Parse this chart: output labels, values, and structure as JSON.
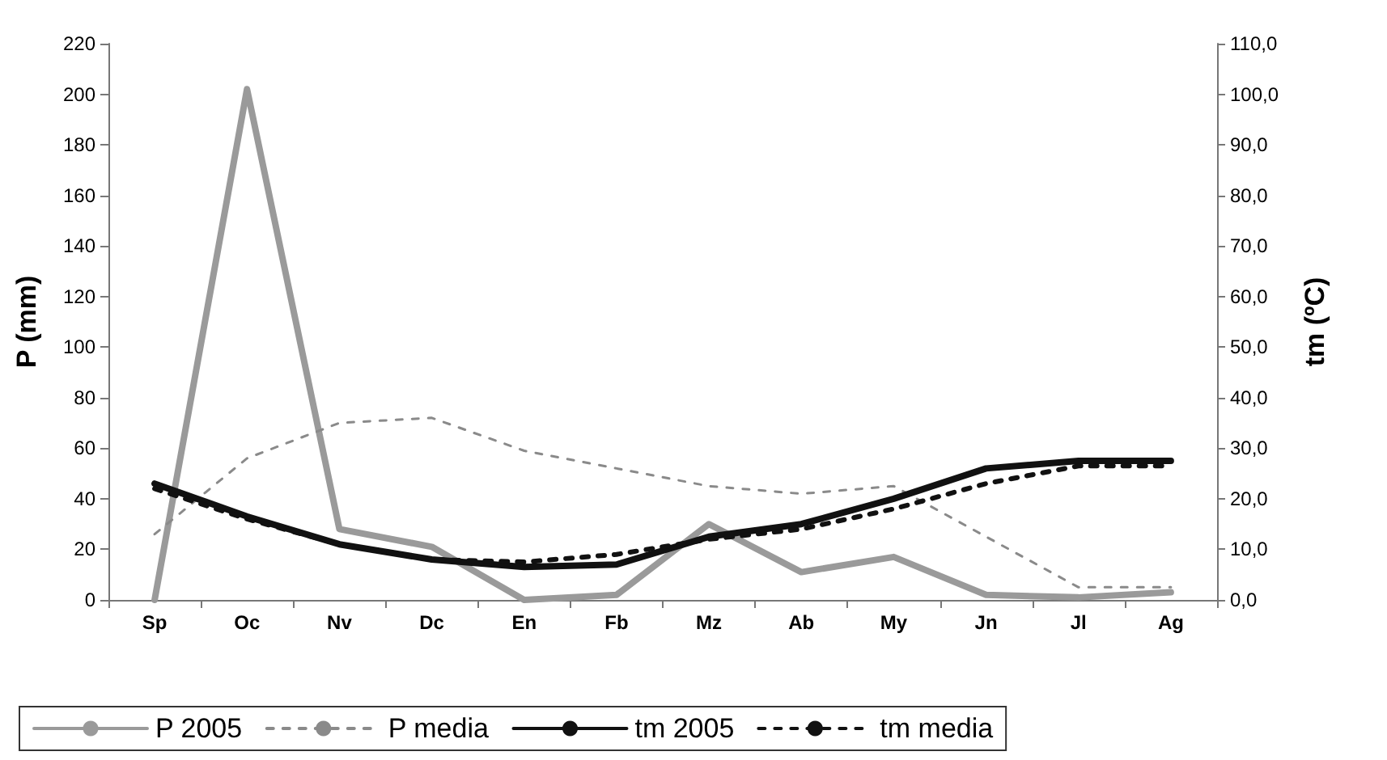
{
  "chart_data": {
    "type": "line",
    "ylabel": "P (mm)",
    "y2label": "tm (ºC)",
    "categories": [
      "Sp",
      "Oc",
      "Nv",
      "Dc",
      "En",
      "Fb",
      "Mz",
      "Ab",
      "My",
      "Jn",
      "Jl",
      "Ag"
    ],
    "series": [
      {
        "name": "P 2005",
        "color": "#9a9a9a",
        "line_style": "solid",
        "values": [
          0,
          202,
          28,
          21,
          0,
          2,
          30,
          11,
          17,
          2,
          1,
          3
        ]
      },
      {
        "name": "P media",
        "color": "#8a8a8a",
        "line_style": "dashed",
        "values": [
          26,
          56,
          70,
          72,
          59,
          52,
          45,
          42,
          45,
          25,
          5,
          5
        ]
      },
      {
        "name": "tm 2005",
        "color": "#111111",
        "line_style": "solid",
        "axis": "y2",
        "values": [
          23,
          16.5,
          11,
          8,
          6.5,
          7,
          12.5,
          15,
          20,
          26,
          27.5,
          27.5
        ]
      },
      {
        "name": "tm media",
        "color": "#111111",
        "line_style": "dashed",
        "axis": "y2",
        "values": [
          22,
          16,
          11,
          8,
          7.5,
          9,
          12,
          14,
          18,
          23,
          26.5,
          26.5
        ]
      }
    ],
    "ylim": [
      0,
      220
    ],
    "yticks": [
      0,
      20,
      40,
      60,
      80,
      100,
      120,
      140,
      160,
      180,
      200,
      220
    ],
    "y2lim": [
      0,
      110
    ],
    "y2ticks": [
      {
        "value": 0,
        "label": "0,0"
      },
      {
        "value": 10,
        "label": "10,0"
      },
      {
        "value": 20,
        "label": "20,0"
      },
      {
        "value": 30,
        "label": "30,0"
      },
      {
        "value": 40,
        "label": "40,0"
      },
      {
        "value": 50,
        "label": "50,0"
      },
      {
        "value": 60,
        "label": "60,0"
      },
      {
        "value": 70,
        "label": "70,0"
      },
      {
        "value": 80,
        "label": "80,0"
      },
      {
        "value": 90,
        "label": "90,0"
      },
      {
        "value": 100,
        "label": "100,0"
      },
      {
        "value": 110,
        "label": "110,0"
      }
    ],
    "grid": false,
    "legend": "bottom",
    "marker": "none"
  }
}
